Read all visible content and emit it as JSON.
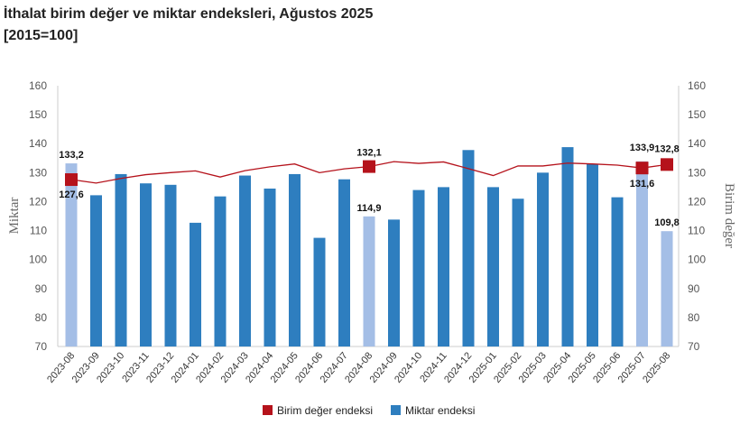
{
  "title_line1": "İthalat birim değer ve miktar endeksleri, Ağustos 2025",
  "title_line2": "[2015=100]",
  "chart_data": {
    "type": "bar+line",
    "categories": [
      "2023-08",
      "2023-09",
      "2023-10",
      "2023-11",
      "2023-12",
      "2024-01",
      "2024-02",
      "2024-03",
      "2024-04",
      "2024-05",
      "2024-06",
      "2024-07",
      "2024-08",
      "2024-09",
      "2024-10",
      "2024-11",
      "2024-12",
      "2025-01",
      "2025-02",
      "2025-03",
      "2025-04",
      "2025-05",
      "2025-06",
      "2025-07",
      "2025-08"
    ],
    "ylim": [
      70,
      160
    ],
    "yticks": [
      70,
      80,
      90,
      100,
      110,
      120,
      130,
      140,
      150,
      160
    ],
    "ylabel_left": "Miktar",
    "ylabel_right": "Birim değer",
    "legend_position": "bottom",
    "series": [
      {
        "name": "Miktar endeksi",
        "type": "bar",
        "color": "#2e7ebf",
        "highlight_color": "#a4bee6",
        "highlight_indices": [
          0,
          12,
          23,
          24
        ],
        "values": [
          133.2,
          122.2,
          129.5,
          126.3,
          125.8,
          112.7,
          121.8,
          129.0,
          124.5,
          129.5,
          107.5,
          127.7,
          114.9,
          113.8,
          124.0,
          125.0,
          137.8,
          125.0,
          121.0,
          130.0,
          138.8,
          133.0,
          121.5,
          133.9,
          109.8
        ],
        "labels": {
          "0": "133,2",
          "12": "114,9",
          "23": "133,9",
          "24": "109,8"
        }
      },
      {
        "name": "Birim değer endeksi",
        "type": "line",
        "color": "#b5121b",
        "marker_indices": [
          0,
          12,
          23,
          24
        ],
        "values": [
          127.6,
          126.4,
          128.0,
          129.3,
          130.0,
          130.6,
          128.5,
          130.7,
          132.0,
          133.0,
          130.0,
          131.3,
          132.1,
          133.8,
          133.2,
          133.7,
          131.4,
          129.0,
          132.3,
          132.3,
          133.3,
          133.0,
          132.6,
          131.6,
          132.8
        ],
        "labels": {
          "0": "127,6",
          "12": "132,1",
          "23": "131,6",
          "24": "132,8"
        }
      }
    ]
  }
}
